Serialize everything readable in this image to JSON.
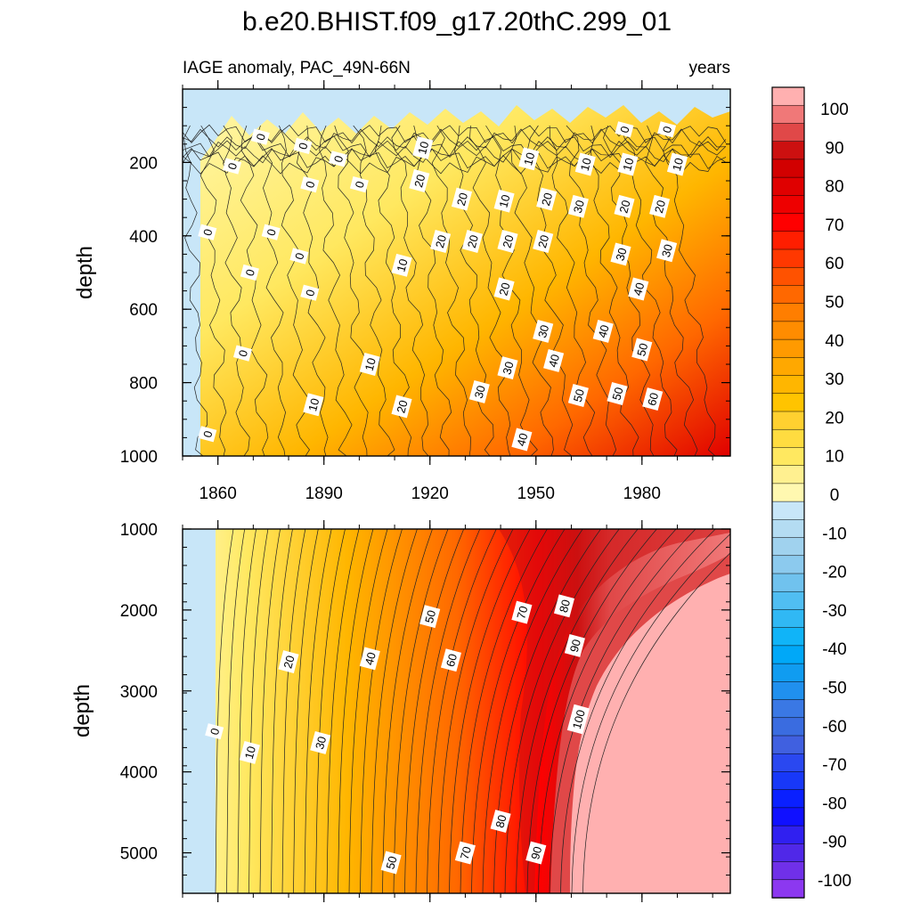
{
  "chart_data": {
    "type": "heatmap",
    "title": "b.e20.BHIST.f09_g17.20thC.299_01",
    "subtitle_left": "IAGE anomaly, PAC_49N-66N",
    "subtitle_right": "years",
    "xlabel": "",
    "ylabel": "depth",
    "x_ticks": [
      1860,
      1890,
      1920,
      1950,
      1980
    ],
    "xlim": [
      1850,
      2005
    ],
    "panels": [
      {
        "name": "upper",
        "ylim": [
          0,
          1000
        ],
        "y_ticks": [
          200,
          400,
          600,
          800,
          1000
        ],
        "contour_labels": [
          {
            "text": "0",
            "year": 1872,
            "depth": 130
          },
          {
            "text": "0",
            "year": 1884,
            "depth": 155
          },
          {
            "text": "0",
            "year": 1864,
            "depth": 210
          },
          {
            "text": "0",
            "year": 1894,
            "depth": 190
          },
          {
            "text": "0",
            "year": 1886,
            "depth": 260
          },
          {
            "text": "0",
            "year": 1900,
            "depth": 260
          },
          {
            "text": "0",
            "year": 1857,
            "depth": 390
          },
          {
            "text": "0",
            "year": 1875,
            "depth": 390
          },
          {
            "text": "0",
            "year": 1883,
            "depth": 455
          },
          {
            "text": "0",
            "year": 1869,
            "depth": 500
          },
          {
            "text": "0",
            "year": 1886,
            "depth": 555
          },
          {
            "text": "0",
            "year": 1867,
            "depth": 720
          },
          {
            "text": "0",
            "year": 1857,
            "depth": 940
          },
          {
            "text": "10",
            "year": 1918,
            "depth": 160
          },
          {
            "text": "10",
            "year": 1948,
            "depth": 190
          },
          {
            "text": "10",
            "year": 1964,
            "depth": 205
          },
          {
            "text": "10",
            "year": 1976,
            "depth": 205
          },
          {
            "text": "10",
            "year": 1990,
            "depth": 205
          },
          {
            "text": "0",
            "year": 1975,
            "depth": 110
          },
          {
            "text": "0",
            "year": 1987,
            "depth": 110
          },
          {
            "text": "20",
            "year": 1917,
            "depth": 250
          },
          {
            "text": "20",
            "year": 1929,
            "depth": 300
          },
          {
            "text": "10",
            "year": 1941,
            "depth": 305
          },
          {
            "text": "20",
            "year": 1953,
            "depth": 300
          },
          {
            "text": "30",
            "year": 1962,
            "depth": 320
          },
          {
            "text": "20",
            "year": 1975,
            "depth": 320
          },
          {
            "text": "20",
            "year": 1985,
            "depth": 320
          },
          {
            "text": "20",
            "year": 1923,
            "depth": 415
          },
          {
            "text": "20",
            "year": 1932,
            "depth": 415
          },
          {
            "text": "20",
            "year": 1942,
            "depth": 415
          },
          {
            "text": "20",
            "year": 1952,
            "depth": 415
          },
          {
            "text": "30",
            "year": 1974,
            "depth": 450
          },
          {
            "text": "30",
            "year": 1987,
            "depth": 440
          },
          {
            "text": "10",
            "year": 1912,
            "depth": 480
          },
          {
            "text": "20",
            "year": 1941,
            "depth": 545
          },
          {
            "text": "40",
            "year": 1979,
            "depth": 545
          },
          {
            "text": "30",
            "year": 1952,
            "depth": 660
          },
          {
            "text": "40",
            "year": 1969,
            "depth": 660
          },
          {
            "text": "50",
            "year": 1980,
            "depth": 710
          },
          {
            "text": "10",
            "year": 1903,
            "depth": 750
          },
          {
            "text": "40",
            "year": 1955,
            "depth": 740
          },
          {
            "text": "30",
            "year": 1942,
            "depth": 760
          },
          {
            "text": "30",
            "year": 1934,
            "depth": 825
          },
          {
            "text": "50",
            "year": 1962,
            "depth": 835
          },
          {
            "text": "50",
            "year": 1973,
            "depth": 830
          },
          {
            "text": "60",
            "year": 1983,
            "depth": 845
          },
          {
            "text": "10",
            "year": 1887,
            "depth": 860
          },
          {
            "text": "20",
            "year": 1912,
            "depth": 865
          },
          {
            "text": "40",
            "year": 1946,
            "depth": 955
          }
        ]
      },
      {
        "name": "lower",
        "ylim": [
          1000,
          5500
        ],
        "y_ticks": [
          1000,
          2000,
          3000,
          4000,
          5000
        ],
        "contour_labels": [
          {
            "text": "50",
            "year": 1920,
            "depth": 2080
          },
          {
            "text": "70",
            "year": 1946,
            "depth": 2030
          },
          {
            "text": "80",
            "year": 1958,
            "depth": 1950
          },
          {
            "text": "90",
            "year": 1961,
            "depth": 2440
          },
          {
            "text": "20",
            "year": 1880,
            "depth": 2640
          },
          {
            "text": "40",
            "year": 1903,
            "depth": 2600
          },
          {
            "text": "60",
            "year": 1926,
            "depth": 2620
          },
          {
            "text": "100",
            "year": 1962,
            "depth": 3350
          },
          {
            "text": "0",
            "year": 1859,
            "depth": 3500
          },
          {
            "text": "30",
            "year": 1889,
            "depth": 3640
          },
          {
            "text": "10",
            "year": 1869,
            "depth": 3760
          },
          {
            "text": "80",
            "year": 1940,
            "depth": 4610
          },
          {
            "text": "70",
            "year": 1930,
            "depth": 5000
          },
          {
            "text": "90",
            "year": 1950,
            "depth": 5000
          },
          {
            "text": "50",
            "year": 1909,
            "depth": 5120
          }
        ]
      }
    ],
    "colorbar": {
      "levels": [
        -100,
        -95,
        -90,
        -85,
        -80,
        -75,
        -70,
        -65,
        -60,
        -55,
        -50,
        -45,
        -40,
        -35,
        -30,
        -25,
        -20,
        -15,
        -10,
        -5,
        0,
        5,
        10,
        15,
        20,
        25,
        30,
        35,
        40,
        45,
        50,
        55,
        60,
        65,
        70,
        75,
        80,
        85,
        90,
        95,
        100
      ],
      "label_values": [
        100,
        90,
        80,
        70,
        60,
        50,
        40,
        30,
        20,
        10,
        0,
        -10,
        -20,
        -30,
        -40,
        -50,
        -60,
        -70,
        -80,
        -90,
        -100
      ],
      "colors_top_to_bottom": [
        "#ffb0b0",
        "#f07878",
        "#e04848",
        "#cc1010",
        "#d20000",
        "#e00000",
        "#ee0000",
        "#ff0000",
        "#ff1e00",
        "#ff3800",
        "#ff5200",
        "#ff6800",
        "#ff7e00",
        "#ff8c00",
        "#ff9a00",
        "#ffa800",
        "#ffb600",
        "#ffc400",
        "#ffd030",
        "#ffdc40",
        "#ffe860",
        "#fff090",
        "#fff8b0",
        "#c8e6f8",
        "#b4dcf2",
        "#a0d2ee",
        "#8ccaee",
        "#70c2ee",
        "#50bef2",
        "#30b8f4",
        "#10b4f8",
        "#00a8f8",
        "#109cf0",
        "#2090ee",
        "#3a78e4",
        "#3a6ce0",
        "#4060e0",
        "#2a48f0",
        "#1838f8",
        "#0a20ff",
        "#1010ff",
        "#3020f0",
        "#5028e8",
        "#7030e8",
        "#8c38f0"
      ]
    }
  }
}
